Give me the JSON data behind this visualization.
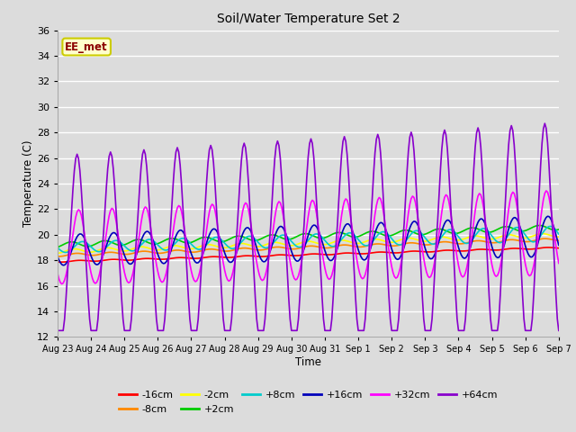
{
  "title": "Soil/Water Temperature Set 2",
  "xlabel": "Time",
  "ylabel": "Temperature (C)",
  "ylim": [
    12,
    36
  ],
  "yticks": [
    12,
    14,
    16,
    18,
    20,
    22,
    24,
    26,
    28,
    30,
    32,
    34,
    36
  ],
  "bg_color": "#dcdcdc",
  "plot_bg_color": "#dcdcdc",
  "grid_color": "#ffffff",
  "annotation_text": "EE_met",
  "annotation_bg": "#ffffcc",
  "annotation_fg": "#8b0000",
  "annotation_border": "#cccc00",
  "series": [
    {
      "label": "-16cm",
      "color": "#ff0000",
      "lw": 1.2
    },
    {
      "label": "-8cm",
      "color": "#ff8800",
      "lw": 1.2
    },
    {
      "label": "-2cm",
      "color": "#ffff00",
      "lw": 1.2
    },
    {
      "label": "+2cm",
      "color": "#00cc00",
      "lw": 1.2
    },
    {
      "label": "+8cm",
      "color": "#00cccc",
      "lw": 1.2
    },
    {
      "label": "+16cm",
      "color": "#0000bb",
      "lw": 1.2
    },
    {
      "label": "+32cm",
      "color": "#ff00ff",
      "lw": 1.2
    },
    {
      "label": "+64cm",
      "color": "#8800cc",
      "lw": 1.2
    }
  ],
  "x_start": 0,
  "x_end": 360,
  "x_ticks": [
    0,
    24,
    48,
    72,
    96,
    120,
    144,
    168,
    192,
    216,
    240,
    264,
    288,
    312,
    336,
    360
  ],
  "x_tick_labels": [
    "Aug 23",
    "Aug 24",
    "Aug 25",
    "Aug 26",
    "Aug 27",
    "Aug 28",
    "Aug 29",
    "Aug 30",
    "Aug 31",
    "Sep 1",
    "Sep 2",
    "Sep 3",
    "Sep 4",
    "Sep 5",
    "Sep 6",
    "Sep 7"
  ]
}
